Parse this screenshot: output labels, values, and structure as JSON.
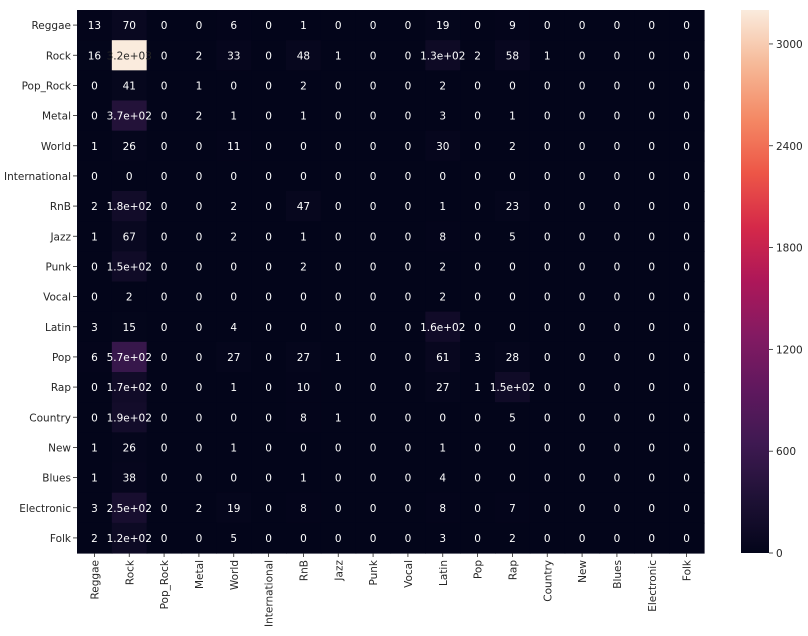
{
  "chart_data": {
    "type": "heatmap",
    "row_labels": [
      "Reggae",
      "Rock",
      "Pop_Rock",
      "Metal",
      "World",
      "International",
      "RnB",
      "Jazz",
      "Punk",
      "Vocal",
      "Latin",
      "Pop",
      "Rap",
      "Country",
      "New",
      "Blues",
      "Electronic",
      "Folk"
    ],
    "col_labels": [
      "Reggae",
      "Rock",
      "Pop_Rock",
      "Metal",
      "World",
      "International",
      "RnB",
      "Jazz",
      "Punk",
      "Vocal",
      "Latin",
      "Pop",
      "Rap",
      "Country",
      "New",
      "Blues",
      "Electronic",
      "Folk"
    ],
    "values": [
      [
        13,
        70,
        0,
        0,
        6,
        0,
        1,
        0,
        0,
        0,
        19,
        0,
        9,
        0,
        0,
        0,
        0,
        0
      ],
      [
        16,
        3200,
        0,
        2,
        33,
        0,
        48,
        1,
        0,
        0,
        130,
        2,
        58,
        1,
        0,
        0,
        0,
        0
      ],
      [
        0,
        41,
        0,
        1,
        0,
        0,
        2,
        0,
        0,
        0,
        2,
        0,
        0,
        0,
        0,
        0,
        0,
        0
      ],
      [
        0,
        370,
        0,
        2,
        1,
        0,
        1,
        0,
        0,
        0,
        3,
        0,
        1,
        0,
        0,
        0,
        0,
        0
      ],
      [
        1,
        26,
        0,
        0,
        11,
        0,
        0,
        0,
        0,
        0,
        30,
        0,
        2,
        0,
        0,
        0,
        0,
        0
      ],
      [
        0,
        0,
        0,
        0,
        0,
        0,
        0,
        0,
        0,
        0,
        0,
        0,
        0,
        0,
        0,
        0,
        0,
        0
      ],
      [
        2,
        180,
        0,
        0,
        2,
        0,
        47,
        0,
        0,
        0,
        1,
        0,
        23,
        0,
        0,
        0,
        0,
        0
      ],
      [
        1,
        67,
        0,
        0,
        2,
        0,
        1,
        0,
        0,
        0,
        8,
        0,
        5,
        0,
        0,
        0,
        0,
        0
      ],
      [
        0,
        150,
        0,
        0,
        0,
        0,
        2,
        0,
        0,
        0,
        2,
        0,
        0,
        0,
        0,
        0,
        0,
        0
      ],
      [
        0,
        2,
        0,
        0,
        0,
        0,
        0,
        0,
        0,
        0,
        2,
        0,
        0,
        0,
        0,
        0,
        0,
        0
      ],
      [
        3,
        15,
        0,
        0,
        4,
        0,
        0,
        0,
        0,
        0,
        160,
        0,
        0,
        0,
        0,
        0,
        0,
        0
      ],
      [
        6,
        570,
        0,
        0,
        27,
        0,
        27,
        1,
        0,
        0,
        61,
        3,
        28,
        0,
        0,
        0,
        0,
        0
      ],
      [
        0,
        170,
        0,
        0,
        1,
        0,
        10,
        0,
        0,
        0,
        27,
        1,
        150,
        0,
        0,
        0,
        0,
        0
      ],
      [
        0,
        190,
        0,
        0,
        0,
        0,
        8,
        1,
        0,
        0,
        0,
        0,
        5,
        0,
        0,
        0,
        0,
        0
      ],
      [
        1,
        26,
        0,
        0,
        1,
        0,
        0,
        0,
        0,
        0,
        1,
        0,
        0,
        0,
        0,
        0,
        0,
        0
      ],
      [
        1,
        38,
        0,
        0,
        0,
        0,
        1,
        0,
        0,
        0,
        4,
        0,
        0,
        0,
        0,
        0,
        0,
        0
      ],
      [
        3,
        250,
        0,
        2,
        19,
        0,
        8,
        0,
        0,
        0,
        8,
        0,
        7,
        0,
        0,
        0,
        0,
        0
      ],
      [
        2,
        120,
        0,
        0,
        5,
        0,
        0,
        0,
        0,
        0,
        3,
        0,
        2,
        0,
        0,
        0,
        0,
        0
      ]
    ],
    "annotations": [
      [
        "13",
        "70",
        "0",
        "0",
        "6",
        "0",
        "1",
        "0",
        "0",
        "0",
        "19",
        "0",
        "9",
        "0",
        "0",
        "0",
        "0",
        "0"
      ],
      [
        "16",
        "3.2e+03",
        "0",
        "2",
        "33",
        "0",
        "48",
        "1",
        "0",
        "0",
        "1.3e+02",
        "2",
        "58",
        "1",
        "0",
        "0",
        "0",
        "0"
      ],
      [
        "0",
        "41",
        "0",
        "1",
        "0",
        "0",
        "2",
        "0",
        "0",
        "0",
        "2",
        "0",
        "0",
        "0",
        "0",
        "0",
        "0",
        "0"
      ],
      [
        "0",
        "3.7e+02",
        "0",
        "2",
        "1",
        "0",
        "1",
        "0",
        "0",
        "0",
        "3",
        "0",
        "1",
        "0",
        "0",
        "0",
        "0",
        "0"
      ],
      [
        "1",
        "26",
        "0",
        "0",
        "11",
        "0",
        "0",
        "0",
        "0",
        "0",
        "30",
        "0",
        "2",
        "0",
        "0",
        "0",
        "0",
        "0"
      ],
      [
        "0",
        "0",
        "0",
        "0",
        "0",
        "0",
        "0",
        "0",
        "0",
        "0",
        "0",
        "0",
        "0",
        "0",
        "0",
        "0",
        "0",
        "0"
      ],
      [
        "2",
        "1.8e+02",
        "0",
        "0",
        "2",
        "0",
        "47",
        "0",
        "0",
        "0",
        "1",
        "0",
        "23",
        "0",
        "0",
        "0",
        "0",
        "0"
      ],
      [
        "1",
        "67",
        "0",
        "0",
        "2",
        "0",
        "1",
        "0",
        "0",
        "0",
        "8",
        "0",
        "5",
        "0",
        "0",
        "0",
        "0",
        "0"
      ],
      [
        "0",
        "1.5e+02",
        "0",
        "0",
        "0",
        "0",
        "2",
        "0",
        "0",
        "0",
        "2",
        "0",
        "0",
        "0",
        "0",
        "0",
        "0",
        "0"
      ],
      [
        "0",
        "2",
        "0",
        "0",
        "0",
        "0",
        "0",
        "0",
        "0",
        "0",
        "2",
        "0",
        "0",
        "0",
        "0",
        "0",
        "0",
        "0"
      ],
      [
        "3",
        "15",
        "0",
        "0",
        "4",
        "0",
        "0",
        "0",
        "0",
        "0",
        "1.6e+02",
        "0",
        "0",
        "0",
        "0",
        "0",
        "0",
        "0"
      ],
      [
        "6",
        "5.7e+02",
        "0",
        "0",
        "27",
        "0",
        "27",
        "1",
        "0",
        "0",
        "61",
        "3",
        "28",
        "0",
        "0",
        "0",
        "0",
        "0"
      ],
      [
        "0",
        "1.7e+02",
        "0",
        "0",
        "1",
        "0",
        "10",
        "0",
        "0",
        "0",
        "27",
        "1",
        "1.5e+02",
        "0",
        "0",
        "0",
        "0",
        "0"
      ],
      [
        "0",
        "1.9e+02",
        "0",
        "0",
        "0",
        "0",
        "8",
        "1",
        "0",
        "0",
        "0",
        "0",
        "5",
        "0",
        "0",
        "0",
        "0",
        "0"
      ],
      [
        "1",
        "26",
        "0",
        "0",
        "1",
        "0",
        "0",
        "0",
        "0",
        "0",
        "1",
        "0",
        "0",
        "0",
        "0",
        "0",
        "0",
        "0"
      ],
      [
        "1",
        "38",
        "0",
        "0",
        "0",
        "0",
        "1",
        "0",
        "0",
        "0",
        "4",
        "0",
        "0",
        "0",
        "0",
        "0",
        "0",
        "0"
      ],
      [
        "3",
        "2.5e+02",
        "0",
        "2",
        "19",
        "0",
        "8",
        "0",
        "0",
        "0",
        "8",
        "0",
        "7",
        "0",
        "0",
        "0",
        "0",
        "0"
      ],
      [
        "2",
        "1.2e+02",
        "0",
        "0",
        "5",
        "0",
        "0",
        "0",
        "0",
        "0",
        "3",
        "0",
        "2",
        "0",
        "0",
        "0",
        "0",
        "0"
      ]
    ],
    "vmin": 0,
    "vmax": 3200,
    "colorbar_ticks": [
      0,
      600,
      1200,
      1800,
      2400,
      3000
    ],
    "colormap": "rocket",
    "title": "",
    "xlabel": "",
    "ylabel": ""
  }
}
